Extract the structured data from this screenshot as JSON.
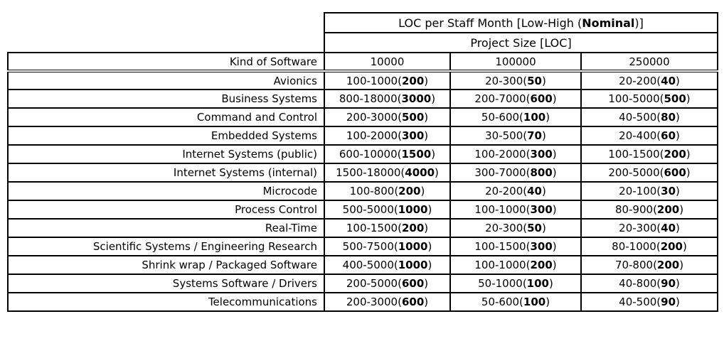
{
  "table": {
    "title_pre": "LOC per Staff Month [Low-High (",
    "title_bold": "Nominal",
    "title_post": ")]",
    "subtitle": "Project Size [LOC]",
    "row_header": "Kind of Software",
    "columns": [
      "10000",
      "100000",
      "250000"
    ],
    "rows": [
      {
        "label": "Avionics",
        "cells": [
          {
            "pre": "100-1000(",
            "nominal": "200",
            "post": ")"
          },
          {
            "pre": "20-300(",
            "nominal": "50",
            "post": ")"
          },
          {
            "pre": "20-200(",
            "nominal": "40",
            "post": ")"
          }
        ]
      },
      {
        "label": "Business Systems",
        "cells": [
          {
            "pre": "800-18000(",
            "nominal": "3000",
            "post": ")"
          },
          {
            "pre": "200-7000(",
            "nominal": "600",
            "post": ")"
          },
          {
            "pre": "100-5000(",
            "nominal": "500",
            "post": ")"
          }
        ]
      },
      {
        "label": "Command and Control",
        "cells": [
          {
            "pre": "200-3000(",
            "nominal": "500",
            "post": ")"
          },
          {
            "pre": "50-600(",
            "nominal": "100",
            "post": ")"
          },
          {
            "pre": "40-500(",
            "nominal": "80",
            "post": ")"
          }
        ]
      },
      {
        "label": "Embedded Systems",
        "cells": [
          {
            "pre": "100-2000(",
            "nominal": "300",
            "post": ")"
          },
          {
            "pre": "30-500(",
            "nominal": "70",
            "post": ")"
          },
          {
            "pre": "20-400(",
            "nominal": "60",
            "post": ")"
          }
        ]
      },
      {
        "label": "Internet Systems (public)",
        "cells": [
          {
            "pre": "600-10000(",
            "nominal": "1500",
            "post": ")"
          },
          {
            "pre": "100-2000(",
            "nominal": "300",
            "post": ")"
          },
          {
            "pre": "100-1500(",
            "nominal": "200",
            "post": ")"
          }
        ]
      },
      {
        "label": "Internet Systems (internal)",
        "cells": [
          {
            "pre": "1500-18000(",
            "nominal": "4000",
            "post": ")"
          },
          {
            "pre": "300-7000(",
            "nominal": "800",
            "post": ")"
          },
          {
            "pre": "200-5000(",
            "nominal": "600",
            "post": ")"
          }
        ]
      },
      {
        "label": "Microcode",
        "cells": [
          {
            "pre": "100-800(",
            "nominal": "200",
            "post": ")"
          },
          {
            "pre": "20-200(",
            "nominal": "40",
            "post": ")"
          },
          {
            "pre": "20-100(",
            "nominal": "30",
            "post": ")"
          }
        ]
      },
      {
        "label": "Process Control",
        "cells": [
          {
            "pre": "500-5000(",
            "nominal": "1000",
            "post": ")"
          },
          {
            "pre": "100-1000(",
            "nominal": "300",
            "post": ")"
          },
          {
            "pre": "80-900(",
            "nominal": "200",
            "post": ")"
          }
        ]
      },
      {
        "label": "Real-Time",
        "cells": [
          {
            "pre": "100-1500(",
            "nominal": "200",
            "post": ")"
          },
          {
            "pre": "20-300(",
            "nominal": "50",
            "post": ")"
          },
          {
            "pre": "20-300(",
            "nominal": "40",
            "post": ")"
          }
        ]
      },
      {
        "label": "Scientific Systems / Engineering Research",
        "cells": [
          {
            "pre": "500-7500(",
            "nominal": "1000",
            "post": ")"
          },
          {
            "pre": "100-1500(",
            "nominal": "300",
            "post": ")"
          },
          {
            "pre": "80-1000(",
            "nominal": "200",
            "post": ")"
          }
        ]
      },
      {
        "label": "Shrink wrap / Packaged Software",
        "cells": [
          {
            "pre": "400-5000(",
            "nominal": "1000",
            "post": ")"
          },
          {
            "pre": "100-1000(",
            "nominal": "200",
            "post": ")"
          },
          {
            "pre": "70-800(",
            "nominal": "200",
            "post": ")"
          }
        ]
      },
      {
        "label": "Systems Software / Drivers",
        "cells": [
          {
            "pre": "200-5000(",
            "nominal": "600",
            "post": ")"
          },
          {
            "pre": "50-1000(",
            "nominal": "100",
            "post": ")"
          },
          {
            "pre": "40-800(",
            "nominal": "90",
            "post": ")"
          }
        ]
      },
      {
        "label": "Telecommunications",
        "cells": [
          {
            "pre": "200-3000(",
            "nominal": "600",
            "post": ")"
          },
          {
            "pre": "50-600(",
            "nominal": "100",
            "post": ")"
          },
          {
            "pre": "40-500(",
            "nominal": "90",
            "post": ")"
          }
        ]
      }
    ]
  }
}
